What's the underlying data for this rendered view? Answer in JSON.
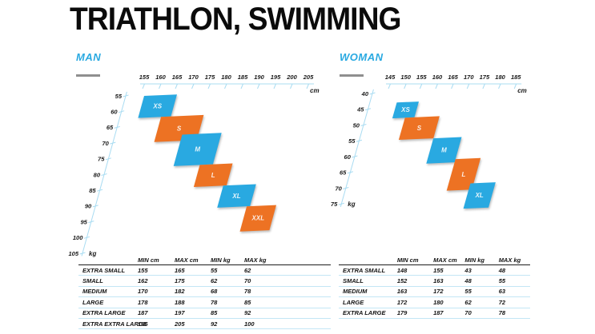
{
  "title": "TRIATHLON, SWIMMING",
  "colors": {
    "blue": "#29A9E1",
    "orange": "#ED7223",
    "axis": "#a9dcf2",
    "rule_light": "#c3e6f5",
    "rule_dark": "#1d1d1d",
    "dash_gray": "#8f8f8f",
    "text_dark": "#141414"
  },
  "chart_data": [
    {
      "type": "area",
      "title": "MAN",
      "xlabel": "cm",
      "ylabel": "kg",
      "xlim": [
        155,
        205
      ],
      "ylim": [
        55,
        105
      ],
      "x_ticks": [
        155,
        160,
        165,
        170,
        175,
        180,
        185,
        190,
        195,
        200,
        205
      ],
      "y_ticks": [
        55,
        60,
        65,
        70,
        75,
        80,
        85,
        90,
        95,
        100,
        105
      ],
      "grid": false,
      "legend": "none",
      "series": [
        {
          "name": "XS",
          "color": "#29A9E1",
          "cm_range": [
            155,
            165
          ],
          "kg_range": [
            55,
            62
          ]
        },
        {
          "name": "S",
          "color": "#ED7223",
          "cm_range": [
            162,
            175
          ],
          "kg_range": [
            62,
            70
          ]
        },
        {
          "name": "M",
          "color": "#29A9E1",
          "cm_range": [
            170,
            182
          ],
          "kg_range": [
            68,
            78
          ]
        },
        {
          "name": "L",
          "color": "#ED7223",
          "cm_range": [
            178,
            188
          ],
          "kg_range": [
            78,
            85
          ]
        },
        {
          "name": "XL",
          "color": "#29A9E1",
          "cm_range": [
            187,
            197
          ],
          "kg_range": [
            85,
            92
          ]
        },
        {
          "name": "XXL",
          "color": "#ED7223",
          "cm_range": [
            196,
            205
          ],
          "kg_range": [
            92,
            100
          ]
        }
      ]
    },
    {
      "type": "table",
      "title": "MAN sizes",
      "headers": [
        "",
        "MIN cm",
        "MAX cm",
        "MIN kg",
        "MAX kg"
      ],
      "rows": [
        [
          "EXTRA SMALL",
          155,
          165,
          55,
          62
        ],
        [
          "SMALL",
          162,
          175,
          62,
          70
        ],
        [
          "MEDIUM",
          170,
          182,
          68,
          78
        ],
        [
          "LARGE",
          178,
          188,
          78,
          85
        ],
        [
          "EXTRA LARGE",
          187,
          197,
          85,
          92
        ],
        [
          "EXTRA EXTRA LARGE",
          196,
          205,
          92,
          100
        ]
      ]
    },
    {
      "type": "area",
      "title": "WOMAN",
      "xlabel": "cm",
      "ylabel": "kg",
      "xlim": [
        145,
        185
      ],
      "ylim": [
        40,
        75
      ],
      "x_ticks": [
        145,
        150,
        155,
        160,
        165,
        170,
        175,
        180,
        185
      ],
      "y_ticks": [
        40,
        45,
        50,
        55,
        60,
        65,
        70,
        75
      ],
      "grid": false,
      "legend": "none",
      "series": [
        {
          "name": "XS",
          "color": "#29A9E1",
          "cm_range": [
            148,
            155
          ],
          "kg_range": [
            43,
            48
          ]
        },
        {
          "name": "S",
          "color": "#ED7223",
          "cm_range": [
            152,
            163
          ],
          "kg_range": [
            48,
            55
          ]
        },
        {
          "name": "M",
          "color": "#29A9E1",
          "cm_range": [
            163,
            172
          ],
          "kg_range": [
            55,
            63
          ]
        },
        {
          "name": "L",
          "color": "#ED7223",
          "cm_range": [
            172,
            180
          ],
          "kg_range": [
            62,
            72
          ]
        },
        {
          "name": "XL",
          "color": "#29A9E1",
          "cm_range": [
            179,
            187
          ],
          "kg_range": [
            70,
            78
          ]
        }
      ]
    },
    {
      "type": "table",
      "title": "WOMAN sizes",
      "headers": [
        "",
        "MIN cm",
        "MAX cm",
        "MIN kg",
        "MAX kg"
      ],
      "rows": [
        [
          "EXTRA SMALL",
          148,
          155,
          43,
          48
        ],
        [
          "SMALL",
          152,
          163,
          48,
          55
        ],
        [
          "MEDIUM",
          163,
          172,
          55,
          63
        ],
        [
          "LARGE",
          172,
          180,
          62,
          72
        ],
        [
          "EXTRA LARGE",
          179,
          187,
          70,
          78
        ]
      ]
    }
  ]
}
